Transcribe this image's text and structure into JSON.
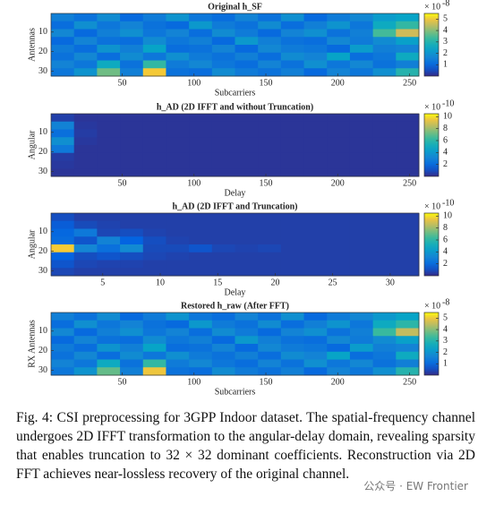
{
  "chart_data": [
    {
      "type": "heatmap",
      "title": "Original h_SF",
      "ylabel": "Antennas",
      "xlabel": "Subcarriers",
      "xlim": [
        0.5,
        256.5
      ],
      "xticks": [
        50,
        100,
        150,
        200,
        250
      ],
      "ylim": [
        0.5,
        32.5
      ],
      "yticks": [
        10,
        20,
        30
      ],
      "clim": [
        0,
        5.5
      ],
      "cbar_ticks": [
        1,
        2,
        3,
        4,
        5
      ],
      "cbar_multiplier": "× 10",
      "cbar_exponent": "-8",
      "colormap": "parula",
      "z": [
        [
          1.5,
          1.2,
          1.8,
          1.0,
          1.4,
          2.0,
          1.3,
          1.1,
          1.6,
          1.2,
          1.9,
          1.0,
          1.4,
          1.7,
          2.2,
          2.4
        ],
        [
          1.1,
          1.9,
          1.3,
          1.6,
          1.2,
          1.0,
          2.1,
          1.4,
          1.2,
          1.8,
          1.1,
          1.5,
          2.0,
          1.3,
          2.6,
          3.2
        ],
        [
          1.7,
          1.0,
          1.5,
          1.9,
          1.3,
          1.6,
          1.1,
          1.8,
          1.4,
          1.0,
          1.6,
          1.9,
          1.2,
          1.5,
          3.4,
          4.6
        ],
        [
          1.0,
          1.6,
          1.2,
          1.1,
          1.8,
          1.3,
          1.5,
          1.0,
          2.1,
          1.5,
          1.2,
          1.1,
          1.7,
          1.4,
          1.8,
          2.3
        ],
        [
          1.4,
          1.1,
          2.0,
          1.5,
          2.4,
          1.1,
          1.2,
          1.6,
          1.0,
          1.7,
          1.4,
          1.3,
          1.0,
          2.2,
          1.5,
          1.6
        ],
        [
          1.2,
          1.7,
          1.1,
          1.8,
          1.3,
          1.9,
          1.4,
          1.2,
          1.5,
          1.1,
          1.8,
          1.6,
          2.4,
          1.1,
          1.3,
          2.6
        ],
        [
          1.6,
          1.3,
          2.6,
          1.2,
          3.2,
          1.4,
          1.7,
          1.3,
          1.1,
          1.6,
          1.2,
          1.9,
          1.3,
          1.7,
          1.2,
          1.5
        ],
        [
          1.3,
          2.0,
          3.8,
          1.5,
          5.1,
          1.2,
          1.1,
          1.8,
          1.4,
          1.2,
          1.5,
          1.0,
          1.6,
          1.3,
          1.9,
          3.0
        ]
      ]
    },
    {
      "type": "heatmap",
      "title": "h_AD (2D IFFT and without Truncation)",
      "ylabel": "Angular",
      "xlabel": "Delay",
      "xlim": [
        0.5,
        256.5
      ],
      "xticks": [
        50,
        100,
        150,
        200,
        250
      ],
      "ylim": [
        0.5,
        32.5
      ],
      "yticks": [
        10,
        20,
        30
      ],
      "clim": [
        0,
        10.5
      ],
      "cbar_ticks": [
        2,
        4,
        6,
        8,
        10
      ],
      "cbar_multiplier": "× 10",
      "cbar_exponent": "-10",
      "colormap": "parula",
      "z": [
        [
          0.6,
          0.3,
          0.3,
          0.3,
          0.3,
          0.3,
          0.3,
          0.3,
          0.3,
          0.3,
          0.3,
          0.3,
          0.3,
          0.3,
          0.3,
          0.3
        ],
        [
          3.0,
          0.4,
          0.3,
          0.3,
          0.3,
          0.3,
          0.3,
          0.3,
          0.3,
          0.3,
          0.3,
          0.3,
          0.3,
          0.3,
          0.3,
          0.3
        ],
        [
          2.2,
          0.5,
          0.3,
          0.3,
          0.3,
          0.3,
          0.3,
          0.3,
          0.3,
          0.3,
          0.3,
          0.3,
          0.3,
          0.3,
          0.3,
          0.3
        ],
        [
          3.6,
          0.4,
          0.3,
          0.3,
          0.3,
          0.3,
          0.3,
          0.3,
          0.3,
          0.3,
          0.3,
          0.3,
          0.3,
          0.3,
          0.3,
          0.3
        ],
        [
          2.6,
          0.3,
          0.3,
          0.3,
          0.3,
          0.3,
          0.3,
          0.3,
          0.3,
          0.3,
          0.3,
          0.3,
          0.3,
          0.3,
          0.3,
          0.3
        ],
        [
          0.5,
          0.3,
          0.3,
          0.3,
          0.3,
          0.3,
          0.3,
          0.3,
          0.3,
          0.3,
          0.3,
          0.3,
          0.3,
          0.3,
          0.3,
          0.3
        ],
        [
          0.4,
          0.3,
          0.3,
          0.3,
          0.3,
          0.3,
          0.3,
          0.3,
          0.3,
          0.3,
          0.3,
          0.3,
          0.3,
          0.3,
          0.3,
          0.3
        ],
        [
          0.3,
          0.3,
          0.3,
          0.3,
          0.3,
          0.3,
          0.3,
          0.3,
          0.3,
          0.3,
          0.3,
          0.3,
          0.3,
          0.3,
          0.3,
          0.3
        ]
      ]
    },
    {
      "type": "heatmap",
      "title": "h_AD (2D IFFT and Truncation)",
      "ylabel": "Angular",
      "xlabel": "Delay",
      "xlim": [
        0.5,
        32.5
      ],
      "xticks": [
        5,
        10,
        15,
        20,
        25,
        30
      ],
      "ylim": [
        0.5,
        32.5
      ],
      "yticks": [
        10,
        20,
        30
      ],
      "clim": [
        0,
        10.5
      ],
      "cbar_ticks": [
        2,
        4,
        6,
        8,
        10
      ],
      "cbar_multiplier": "× 10",
      "cbar_exponent": "-10",
      "colormap": "parula",
      "z": [
        [
          1.0,
          0.6,
          0.6,
          0.6,
          0.6,
          0.6,
          0.6,
          0.6,
          0.6,
          0.6,
          0.6,
          0.6,
          0.6,
          0.6,
          0.6,
          0.6
        ],
        [
          1.4,
          0.9,
          0.7,
          0.6,
          0.6,
          0.6,
          0.6,
          0.6,
          0.6,
          0.6,
          0.6,
          0.6,
          0.6,
          0.6,
          0.6,
          0.6
        ],
        [
          1.8,
          2.6,
          0.8,
          1.0,
          0.7,
          0.6,
          0.6,
          0.6,
          0.6,
          0.6,
          0.6,
          0.6,
          0.6,
          0.6,
          0.6,
          0.6
        ],
        [
          2.0,
          1.2,
          3.0,
          1.6,
          1.0,
          0.7,
          0.6,
          0.6,
          0.6,
          0.6,
          0.6,
          0.6,
          0.6,
          0.6,
          0.6,
          0.6
        ],
        [
          9.8,
          3.2,
          2.2,
          3.4,
          0.9,
          0.9,
          1.2,
          0.8,
          0.7,
          0.8,
          0.6,
          0.6,
          0.6,
          0.6,
          0.6,
          0.6
        ],
        [
          1.6,
          1.0,
          1.2,
          1.0,
          0.8,
          0.7,
          0.6,
          0.6,
          0.6,
          0.6,
          0.6,
          0.6,
          0.6,
          0.6,
          0.6,
          0.6
        ],
        [
          1.2,
          0.8,
          0.7,
          0.7,
          0.6,
          0.6,
          0.6,
          0.6,
          0.6,
          0.6,
          0.6,
          0.6,
          0.6,
          0.6,
          0.6,
          0.6
        ],
        [
          0.8,
          0.6,
          0.6,
          0.6,
          0.6,
          0.6,
          0.6,
          0.6,
          0.6,
          0.6,
          0.6,
          0.6,
          0.6,
          0.6,
          0.6,
          0.6
        ]
      ]
    },
    {
      "type": "heatmap",
      "title": "Restored h_raw (After FFT)",
      "ylabel": "RX Antennas",
      "xlabel": "Subcarriers",
      "xlim": [
        0.5,
        256.5
      ],
      "xticks": [
        50,
        100,
        150,
        200,
        250
      ],
      "ylim": [
        0.5,
        32.5
      ],
      "yticks": [
        10,
        20,
        30
      ],
      "clim": [
        0,
        5.5
      ],
      "cbar_ticks": [
        1,
        2,
        3,
        4,
        5
      ],
      "cbar_multiplier": "× 10",
      "cbar_exponent": "-8",
      "colormap": "parula",
      "z": [
        [
          1.5,
          1.2,
          1.8,
          1.0,
          1.4,
          2.0,
          1.3,
          1.1,
          1.6,
          1.2,
          1.9,
          1.0,
          1.4,
          1.7,
          2.1,
          2.4
        ],
        [
          1.1,
          1.9,
          1.3,
          1.6,
          1.2,
          1.0,
          2.1,
          1.4,
          1.2,
          1.8,
          1.1,
          1.5,
          2.0,
          1.3,
          2.6,
          3.1
        ],
        [
          1.7,
          1.0,
          1.5,
          1.9,
          1.3,
          1.6,
          1.1,
          1.8,
          1.4,
          1.0,
          1.6,
          1.9,
          1.2,
          1.5,
          3.3,
          4.5
        ],
        [
          1.0,
          1.6,
          1.2,
          1.1,
          1.8,
          1.3,
          1.5,
          1.0,
          2.1,
          1.5,
          1.2,
          1.1,
          1.7,
          1.4,
          1.8,
          2.3
        ],
        [
          1.4,
          1.1,
          2.0,
          1.5,
          2.4,
          1.1,
          1.2,
          1.6,
          1.0,
          1.7,
          1.4,
          1.3,
          1.0,
          2.2,
          1.5,
          1.6
        ],
        [
          1.2,
          1.7,
          1.1,
          1.8,
          1.3,
          1.9,
          1.4,
          1.2,
          1.5,
          1.1,
          1.8,
          1.6,
          2.4,
          1.1,
          1.3,
          2.6
        ],
        [
          1.6,
          1.3,
          2.6,
          1.2,
          3.2,
          1.4,
          1.7,
          1.3,
          1.1,
          1.6,
          1.2,
          1.9,
          1.3,
          1.7,
          1.2,
          1.5
        ],
        [
          1.3,
          2.0,
          3.7,
          1.5,
          5.0,
          1.2,
          1.1,
          1.8,
          1.4,
          1.2,
          1.5,
          1.0,
          1.6,
          1.3,
          1.9,
          3.0
        ]
      ]
    }
  ],
  "caption": "Fig. 4: CSI preprocessing for 3GPP Indoor dataset. The spatial-frequency channel undergoes 2D IFFT transformation to the angular-delay domain, revealing sparsity that enables truncation to 32 × 32 dominant coefficients. Reconstruction via 2D FFT achieves near-lossless recovery of the original channel.",
  "watermark": "公众号 · EW Frontier"
}
